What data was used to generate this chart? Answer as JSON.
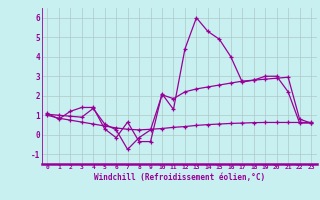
{
  "xlabel": "Windchill (Refroidissement éolien,°C)",
  "bg_color": "#c8f0f0",
  "line_color": "#990099",
  "grid_color": "#b0c8c8",
  "xlim": [
    -0.5,
    23.5
  ],
  "ylim": [
    -1.5,
    6.5
  ],
  "yticks": [
    -1,
    0,
    1,
    2,
    3,
    4,
    5,
    6
  ],
  "xticks": [
    0,
    1,
    2,
    3,
    4,
    5,
    6,
    7,
    8,
    9,
    10,
    11,
    12,
    13,
    14,
    15,
    16,
    17,
    18,
    19,
    20,
    21,
    22,
    23
  ],
  "line1_x": [
    0,
    1,
    2,
    3,
    4,
    5,
    6,
    7,
    8,
    9,
    10,
    11,
    12,
    13,
    14,
    15,
    16,
    17,
    18,
    19,
    20,
    21,
    22,
    23
  ],
  "line1_y": [
    1.1,
    0.8,
    1.2,
    1.4,
    1.4,
    0.3,
    -0.15,
    0.65,
    -0.35,
    -0.35,
    2.1,
    1.3,
    4.4,
    6.0,
    5.3,
    4.9,
    4.0,
    2.7,
    2.8,
    3.0,
    3.0,
    2.2,
    0.6,
    0.6
  ],
  "line2_x": [
    0,
    1,
    2,
    3,
    4,
    5,
    6,
    7,
    8,
    9,
    10,
    11,
    12,
    13,
    14,
    15,
    16,
    17,
    18,
    19,
    20,
    21,
    22,
    23
  ],
  "line2_y": [
    1.05,
    1.0,
    0.95,
    0.9,
    1.35,
    0.55,
    0.25,
    -0.75,
    -0.15,
    0.25,
    2.05,
    1.85,
    2.2,
    2.35,
    2.45,
    2.55,
    2.65,
    2.75,
    2.8,
    2.85,
    2.9,
    2.95,
    0.8,
    0.6
  ],
  "line3_x": [
    0,
    1,
    2,
    3,
    4,
    5,
    6,
    7,
    8,
    9,
    10,
    11,
    12,
    13,
    14,
    15,
    16,
    17,
    18,
    19,
    20,
    21,
    22,
    23
  ],
  "line3_y": [
    1.0,
    0.85,
    0.75,
    0.65,
    0.55,
    0.45,
    0.35,
    0.28,
    0.25,
    0.28,
    0.32,
    0.38,
    0.42,
    0.48,
    0.52,
    0.55,
    0.58,
    0.6,
    0.62,
    0.63,
    0.63,
    0.63,
    0.63,
    0.63
  ]
}
